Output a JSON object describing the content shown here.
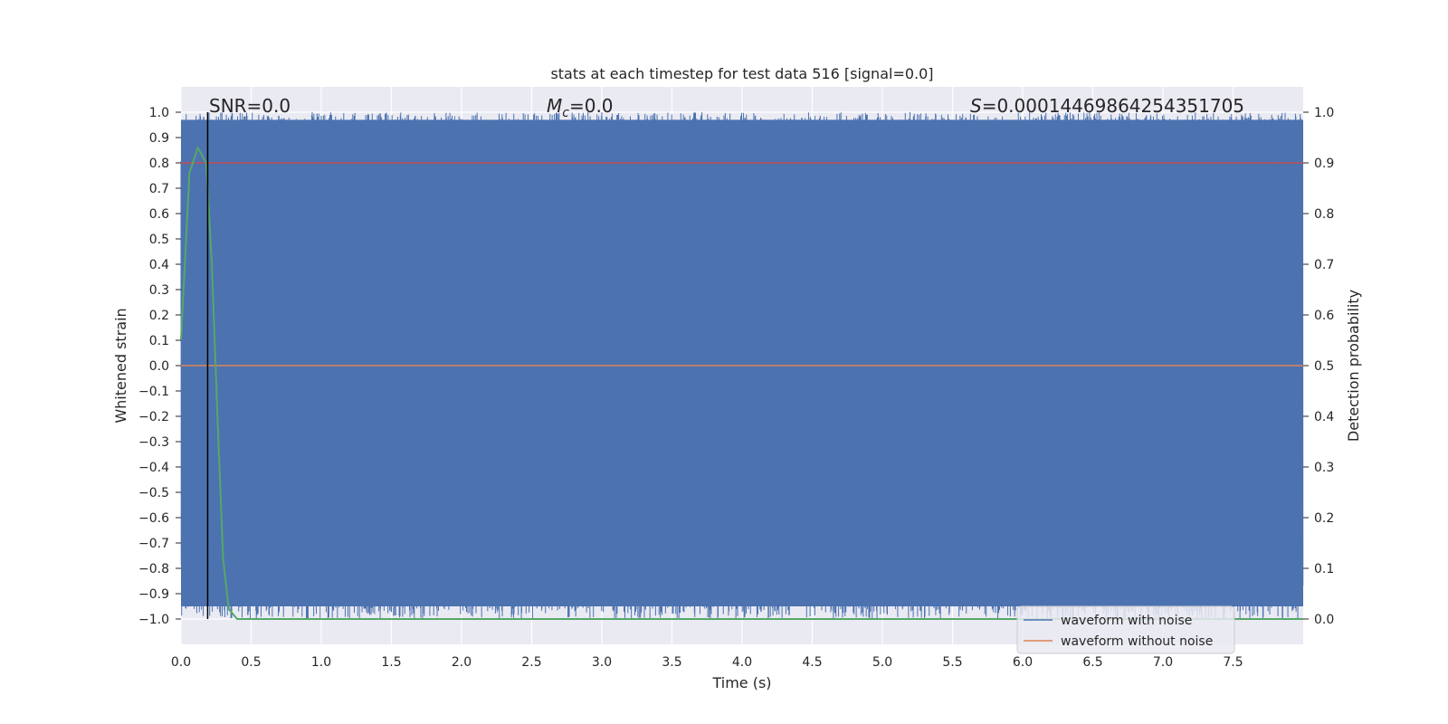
{
  "chart_data": {
    "type": "line",
    "title": "stats at each timestep for test data 516 [signal=0.0]",
    "xlabel": "Time (s)",
    "ylabel": "Whitened strain",
    "ylabel_right": "Detection probability",
    "xlim": [
      0.0,
      8.0
    ],
    "ylim": [
      -1.1,
      1.1
    ],
    "ylim_right": [
      -0.05,
      1.05
    ],
    "xticks": [
      0.0,
      0.5,
      1.0,
      1.5,
      2.0,
      2.5,
      3.0,
      3.5,
      4.0,
      4.5,
      5.0,
      5.5,
      6.0,
      6.5,
      7.0,
      7.5
    ],
    "xtick_labels": [
      "0.0",
      "0.5",
      "1.0",
      "1.5",
      "2.0",
      "2.5",
      "3.0",
      "3.5",
      "4.0",
      "4.5",
      "5.0",
      "5.5",
      "6.0",
      "6.5",
      "7.0",
      "7.5"
    ],
    "yticks": [
      1.0,
      0.9,
      0.8,
      0.7,
      0.6,
      0.5,
      0.4,
      0.3,
      0.2,
      0.1,
      0.0,
      -0.1,
      -0.2,
      -0.3,
      -0.4,
      -0.5,
      -0.6,
      -0.7,
      -0.8,
      -0.9,
      -1.0
    ],
    "ytick_labels": [
      "1.0",
      "0.9",
      "0.8",
      "0.7",
      "0.6",
      "0.5",
      "0.4",
      "0.3",
      "0.2",
      "0.1",
      "0.0",
      "−0.1",
      "−0.2",
      "−0.3",
      "−0.4",
      "−0.5",
      "−0.6",
      "−0.7",
      "−0.8",
      "−0.9",
      "−1.0"
    ],
    "yticks_right": [
      1.0,
      0.9,
      0.8,
      0.7,
      0.6,
      0.5,
      0.4,
      0.3,
      0.2,
      0.1,
      0.0
    ],
    "ytick_labels_right": [
      "1.0",
      "0.9",
      "0.8",
      "0.7",
      "0.6",
      "0.5",
      "0.4",
      "0.3",
      "0.2",
      "0.1",
      "0.0"
    ],
    "grid": true,
    "series": [
      {
        "name": "waveform with noise",
        "color": "#4c72b0",
        "description": "dense noise trace filling the range -1.0 to 1.0 across 0.0–8.0 s"
      },
      {
        "name": "waveform without noise",
        "color": "#dd8452",
        "x": [
          0.0,
          8.0
        ],
        "y": [
          0.0,
          0.0
        ]
      },
      {
        "name": "",
        "axis": "right",
        "color": "#55a868",
        "x": [
          0.0,
          0.06,
          0.12,
          0.18,
          0.22,
          0.26,
          0.3,
          0.34,
          0.4,
          8.0
        ],
        "y": [
          0.55,
          0.88,
          0.93,
          0.9,
          0.7,
          0.4,
          0.12,
          0.02,
          0.0,
          0.0
        ]
      }
    ],
    "hlines": [
      {
        "axis": "right",
        "y": 0.9,
        "color": "#c44e52"
      }
    ],
    "vlines": [
      {
        "x": 0.19,
        "color": "#000000"
      }
    ],
    "annotations": {
      "snr": "SNR=0.0",
      "mc_symbol": "M",
      "mc_sub": "c",
      "mc_value": "=0.0",
      "s_symbol": "S",
      "s_value": "=0.00014469864254351705"
    },
    "legend": {
      "placement": "lower-right",
      "entries": [
        "waveform with noise",
        "waveform without noise"
      ]
    }
  }
}
